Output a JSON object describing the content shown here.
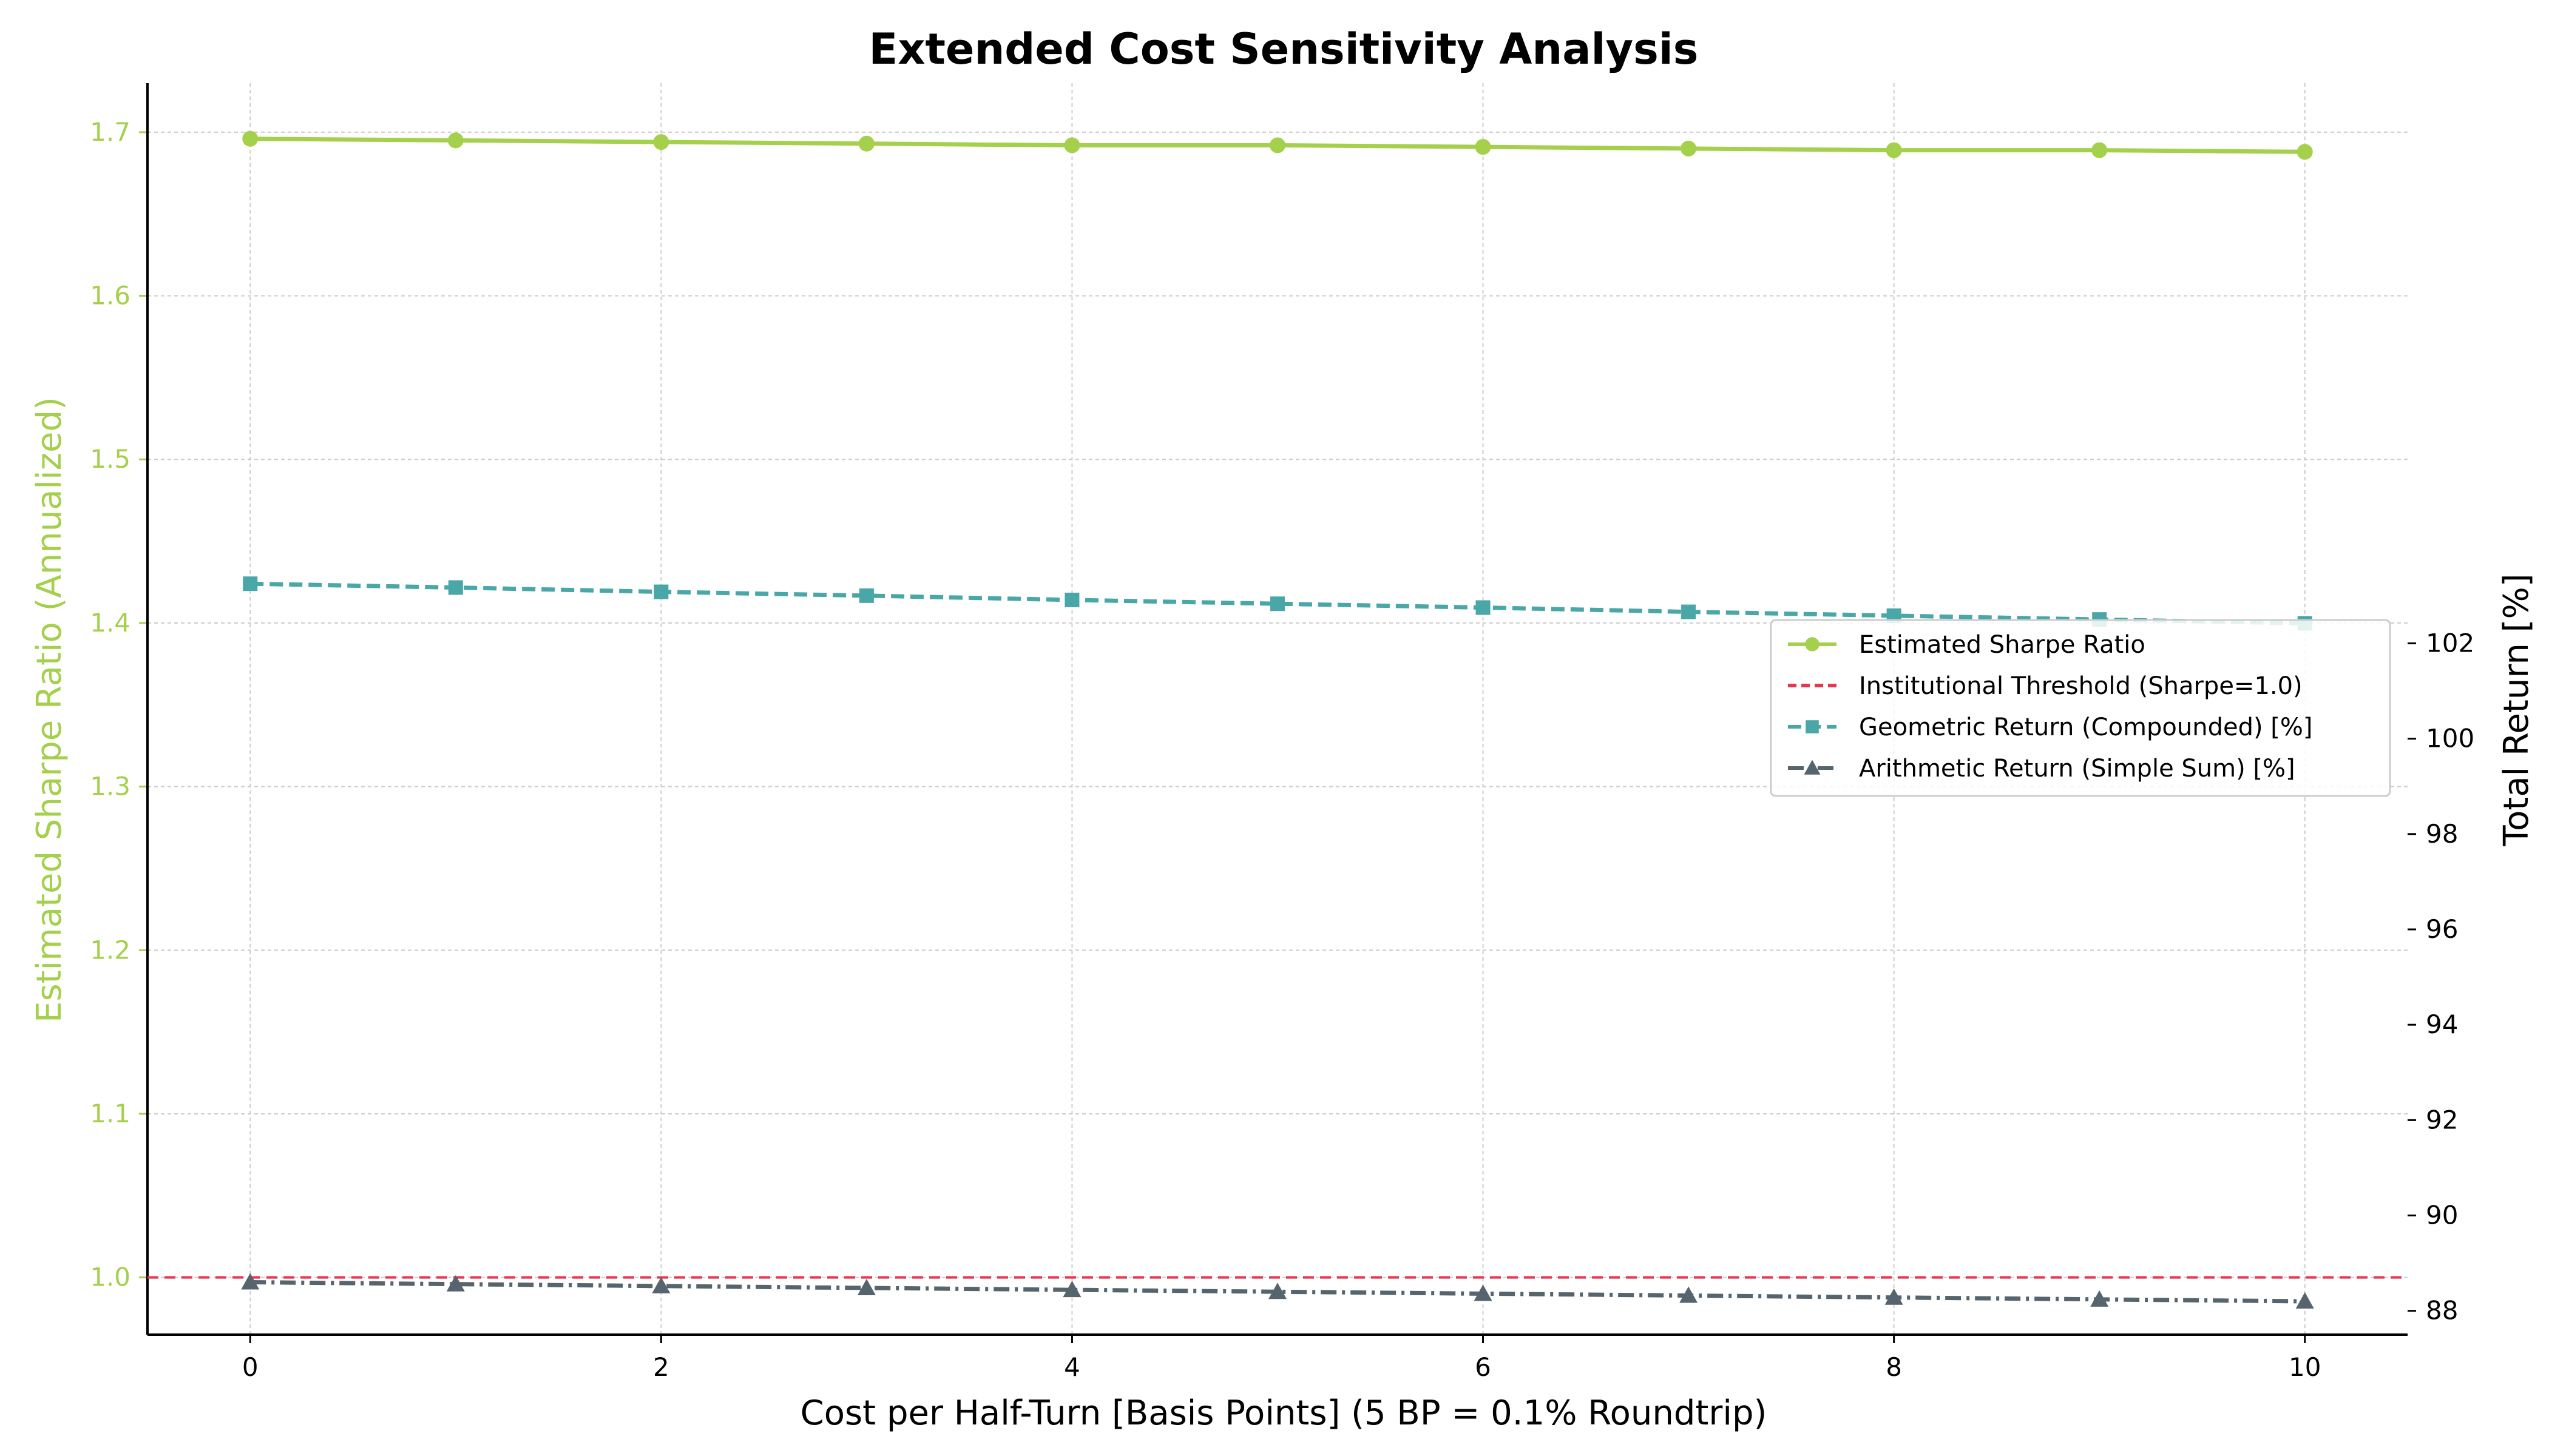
{
  "chart_data": {
    "type": "line",
    "title": "Extended Cost Sensitivity Analysis",
    "xlabel": "Cost per Half-Turn [Basis Points] (5 BP = 0.1% Roundtrip)",
    "ylabel_left": "Estimated Sharpe Ratio (Annualized)",
    "ylabel_right": "Total Return [%]",
    "x": [
      0,
      1,
      2,
      3,
      4,
      5,
      6,
      7,
      8,
      9,
      10
    ],
    "xlim": [
      -0.5,
      10.5
    ],
    "ylim_left": [
      0.965,
      1.73
    ],
    "ylim_right": [
      87.5,
      113.75
    ],
    "xticks": [
      0,
      2,
      4,
      6,
      8,
      10
    ],
    "xtick_labels": [
      "0",
      "2",
      "4",
      "6",
      "8",
      "10"
    ],
    "yticks_left": [
      1.0,
      1.1,
      1.2,
      1.3,
      1.4,
      1.5,
      1.6,
      1.7
    ],
    "ytick_labels_left": [
      "1.0",
      "1.1",
      "1.2",
      "1.3",
      "1.4",
      "1.5",
      "1.6",
      "1.7"
    ],
    "yticks_right": [
      88,
      90,
      92,
      94,
      96,
      98,
      100,
      102
    ],
    "ytick_labels_right": [
      "88",
      "90",
      "92",
      "94",
      "96",
      "98",
      "100",
      "102"
    ],
    "grid": true,
    "legend_position": "center-right",
    "series": [
      {
        "name": "Estimated Sharpe Ratio",
        "axis": "left",
        "color": "#a4d04c",
        "style": "solid",
        "marker": "circle",
        "values": [
          1.696,
          1.695,
          1.694,
          1.693,
          1.692,
          1.692,
          1.691,
          1.69,
          1.689,
          1.689,
          1.688
        ]
      },
      {
        "name": "Geometric Return (Compounded) [%]",
        "axis": "right",
        "color": "#4aa7a8",
        "style": "dashed",
        "marker": "square",
        "values": [
          103.25,
          103.17,
          103.08,
          103.0,
          102.91,
          102.83,
          102.75,
          102.66,
          102.58,
          102.5,
          102.42
        ]
      },
      {
        "name": "Arithmetic Return (Simple Sum) [%]",
        "axis": "right",
        "color": "#56646e",
        "style": "dashdot",
        "marker": "triangle",
        "values": [
          88.6,
          88.56,
          88.52,
          88.48,
          88.44,
          88.4,
          88.36,
          88.32,
          88.28,
          88.24,
          88.2
        ]
      }
    ],
    "reference_lines": [
      {
        "name": "Institutional Threshold (Sharpe=1.0)",
        "axis": "left",
        "y": 1.0,
        "color": "#e5384f",
        "style": "dashed"
      }
    ],
    "legend_order": [
      "Estimated Sharpe Ratio",
      "Institutional Threshold (Sharpe=1.0)",
      "Geometric Return (Compounded) [%]",
      "Arithmetic Return (Simple Sum) [%]"
    ]
  }
}
